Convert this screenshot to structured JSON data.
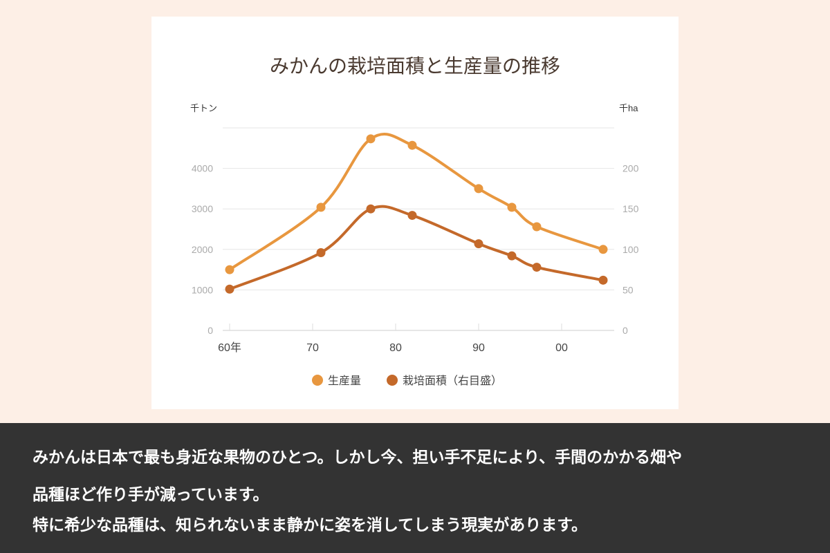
{
  "chart_data": {
    "type": "line",
    "title": "みかんの栽培面積と生産量の推移",
    "y_left_unit": "千トン",
    "y_right_unit": "千ha",
    "x_ticks": [
      {
        "year": 1960,
        "label": "60年"
      },
      {
        "year": 1970,
        "label": "70"
      },
      {
        "year": 1980,
        "label": "80"
      },
      {
        "year": 1990,
        "label": "90"
      },
      {
        "year": 2000,
        "label": "00"
      }
    ],
    "y_left_ticks": [
      0,
      1000,
      2000,
      3000,
      4000
    ],
    "y_right_ticks": [
      0,
      50,
      100,
      150,
      200
    ],
    "y_left_range": [
      0,
      5000
    ],
    "y_right_range": [
      0,
      250
    ],
    "grid": true,
    "smooth": true,
    "legend_position": "bottom",
    "series": [
      {
        "name": "生産量",
        "axis": "left",
        "color": "#E8973F",
        "x": [
          1960,
          1971,
          1977,
          1982,
          1990,
          1994,
          1997,
          2005
        ],
        "values": [
          1500,
          3040,
          4730,
          4570,
          3500,
          3040,
          2560,
          2000
        ]
      },
      {
        "name": "栽培面積（右目盛）",
        "axis": "right",
        "color": "#C4692A",
        "x": [
          1960,
          1971,
          1977,
          1982,
          1990,
          1994,
          1997,
          2005
        ],
        "values": [
          51,
          96,
          150,
          142,
          107,
          92,
          78,
          62
        ]
      }
    ]
  },
  "caption": {
    "lines": [
      "みかんは日本で最も身近な果物のひとつ。しかし今、担い手不足により、手間のかかる畑や",
      "品種ほど作り手が減っています。",
      "特に希少な品種は、知られないまま静かに姿を消してしまう現実があります。"
    ]
  }
}
